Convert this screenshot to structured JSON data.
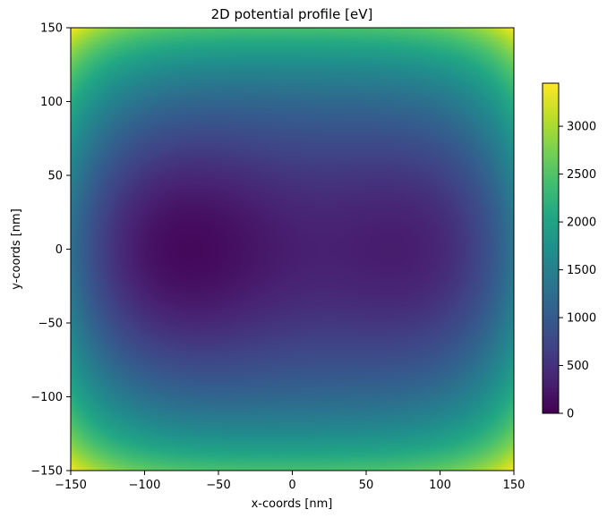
{
  "chart_data": {
    "type": "heatmap",
    "title": "2D potential profile [eV]",
    "xlabel": "x-coords [nm]",
    "ylabel": "y-coords [nm]",
    "xlim": [
      -150,
      150
    ],
    "ylim": [
      -150,
      150
    ],
    "x_ticks": [
      -150,
      -100,
      -50,
      0,
      50,
      100,
      150
    ],
    "y_ticks": [
      -150,
      -100,
      -50,
      0,
      50,
      100,
      150
    ],
    "x_tick_labels": [
      "−150",
      "−100",
      "−50",
      "0",
      "50",
      "100",
      "150"
    ],
    "y_tick_labels": [
      "−150",
      "−100",
      "−50",
      "0",
      "50",
      "100",
      "150"
    ],
    "colormap": "viridis",
    "grid": false,
    "colorbar": {
      "range": [
        0,
        3450
      ],
      "ticks": [
        0,
        500,
        1000,
        1500,
        2000,
        2500,
        3000
      ],
      "tick_labels": [
        "0",
        "500",
        "1000",
        "1500",
        "2000",
        "2500",
        "3000"
      ]
    },
    "wells": [
      {
        "x": -85,
        "y": 0,
        "value": 0
      },
      {
        "x": 95,
        "y": 0,
        "value": 200
      }
    ],
    "corner_value": 3450
  }
}
